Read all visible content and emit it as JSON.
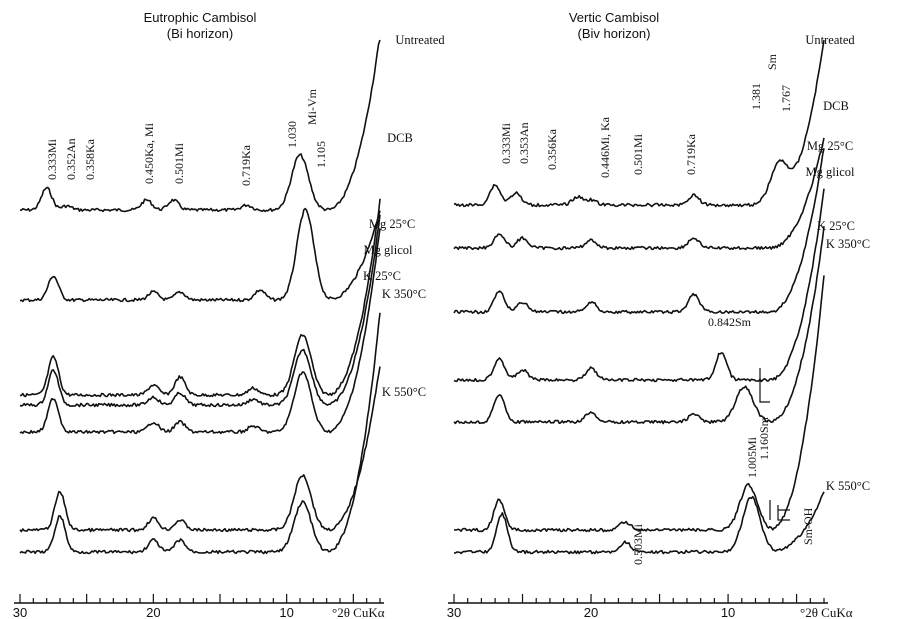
{
  "chart_data": [
    {
      "type": "line",
      "title": "Eutrophic Cambisol",
      "subtitle": "(Bi horizon)",
      "xlabel": "°2θ CuKα",
      "xlim": [
        30,
        3
      ],
      "x_reversed": true,
      "xticks": [
        30,
        20,
        10
      ],
      "series": [
        {
          "name": "Untreated",
          "peaks": [
            28,
            26.5,
            20.5,
            18.5,
            13,
            9
          ]
        },
        {
          "name": "DCB",
          "peaks": [
            27.5,
            20,
            18,
            12,
            8.6
          ]
        },
        {
          "name": "Mg 25°C",
          "peaks": [
            27.5,
            20,
            18,
            12.5,
            8.8
          ]
        },
        {
          "name": "Mg glicol",
          "peaks": [
            27.5,
            20,
            18,
            12.5,
            8.8
          ]
        },
        {
          "name": "K 25°C",
          "peaks": [
            27.5,
            20,
            18,
            12.5,
            8.8
          ]
        },
        {
          "name": "K 350°C",
          "peaks": [
            27,
            20,
            18,
            8.8
          ]
        },
        {
          "name": "K 550°C",
          "peaks": [
            27,
            20,
            18,
            8.8
          ]
        }
      ],
      "annotations": [
        "0.333Mi",
        "0.352An",
        "0.358Ka",
        "0.450Ka, Mi",
        "0.501Mi",
        "0.719Ka",
        "1.030",
        "Mi-Vm",
        "1.105"
      ]
    },
    {
      "type": "line",
      "title": "Vertic Cambisol",
      "subtitle": "(Biv horizon)",
      "xlabel": "°2θ CuKα",
      "xlim": [
        30,
        3
      ],
      "x_reversed": true,
      "xticks": [
        30,
        20,
        10
      ],
      "series": [
        {
          "name": "Untreated",
          "peaks": [
            27,
            25.5,
            21,
            20,
            12.5,
            6.3
          ]
        },
        {
          "name": "DCB",
          "peaks": [
            26.7,
            25,
            20,
            12.5
          ]
        },
        {
          "name": "Mg 25°C",
          "peaks": [
            26.7,
            25,
            20,
            12.5
          ]
        },
        {
          "name": "Mg glicol",
          "peaks": [
            26.7,
            25,
            20,
            10.5
          ]
        },
        {
          "name": "K 25°C",
          "peaks": [
            26.7,
            20,
            12.5,
            8.8
          ]
        },
        {
          "name": "K 350°C",
          "peaks": [
            26.7,
            17.5,
            8.5
          ]
        },
        {
          "name": "K 550°C",
          "peaks": [
            26.5,
            17.5,
            8.3
          ]
        }
      ],
      "annotations": [
        "0.333Mi",
        "0.353An",
        "0.356Ka",
        "0.446Mi, Ka",
        "0.501Mi",
        "0.719Ka",
        "1.381",
        "Sm",
        "1.767",
        "0.842Sm",
        "1.005Mi",
        "1.160Sm",
        "0.503Mi",
        "Sm-OH"
      ]
    }
  ]
}
